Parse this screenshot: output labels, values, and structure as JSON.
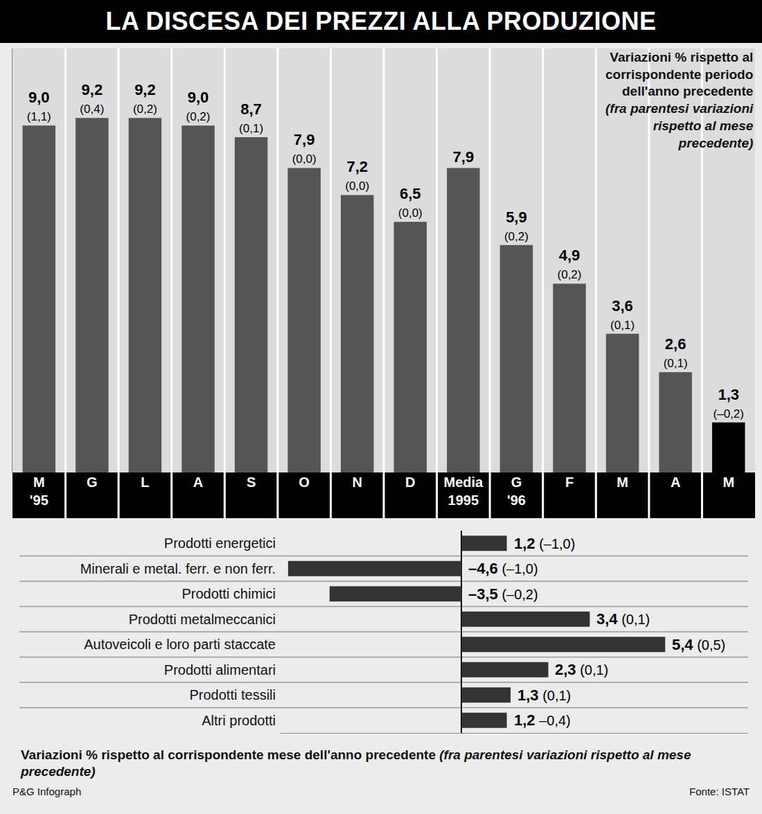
{
  "chart_data": [
    {
      "type": "bar",
      "title": "LA DISCESA DEI PREZZI ALLA PRODUZIONE",
      "annotations": [
        "Variazioni % rispetto al corrispondente periodo dell'anno precedente",
        "(fra parentesi variazioni rispetto al mese precedente)"
      ],
      "categories": [
        "M '95",
        "G",
        "L",
        "A",
        "S",
        "O",
        "N",
        "D",
        "Media 1995",
        "G '96",
        "F",
        "M",
        "A",
        "M"
      ],
      "values": [
        9.0,
        9.2,
        9.2,
        9.0,
        8.7,
        7.9,
        7.2,
        6.5,
        7.9,
        5.9,
        4.9,
        3.6,
        2.6,
        1.3
      ],
      "value_labels": [
        "9,0",
        "9,2",
        "9,2",
        "9,0",
        "8,7",
        "7,9",
        "7,2",
        "6,5",
        "7,9",
        "5,9",
        "4,9",
        "3,6",
        "2,6",
        "1,3"
      ],
      "secondary_labels": [
        "(1,1)",
        "(0,4)",
        "(0,2)",
        "(0,2)",
        "(0,1)",
        "(0,0)",
        "(0,0)",
        "(0,0)",
        null,
        "(0,2)",
        "(0,2)",
        "(0,1)",
        "(0,1)",
        "(–0,2)"
      ],
      "colors": [
        "#555555",
        "#555555",
        "#555555",
        "#555555",
        "#555555",
        "#555555",
        "#555555",
        "#555555",
        "#555555",
        "#555555",
        "#555555",
        "#555555",
        "#555555",
        "#000000"
      ],
      "ylim": [
        0,
        11
      ],
      "tick_labels": "x",
      "data_labels": true
    },
    {
      "type": "bar",
      "orientation": "horizontal",
      "categories": [
        "Prodotti energetici",
        "Minerali e metal. ferr. e non ferr.",
        "Prodotti chimici",
        "Prodotti metalmeccanici",
        "Autoveicoli e loro parti staccate",
        "Prodotti alimentari",
        "Prodotti tessili",
        "Altri prodotti"
      ],
      "values": [
        1.2,
        -4.6,
        -3.5,
        3.4,
        5.4,
        2.3,
        1.3,
        1.2
      ],
      "value_labels": [
        "1,2",
        "–4,6",
        "–3,5",
        "3,4",
        "5,4",
        "2,3",
        "1,3",
        "1,2"
      ],
      "secondary_labels": [
        "(–1,0)",
        "(–1,0)",
        "(–0,2)",
        "(0,1)",
        "(0,5)",
        "(0,1)",
        "(0,1)",
        "–0,4)"
      ],
      "color": "#333333",
      "xlim": [
        -4.8,
        7.6
      ],
      "tick_labels": "y",
      "data_labels": true,
      "annotations": [
        "Variazioni % rispetto al corrispondente mese dell'anno precedente",
        "(fra parentesi variazioni rispetto al mese precedente)"
      ]
    }
  ],
  "footer": {
    "credit": "P&G Infograph",
    "source": "Fonte: ISTAT"
  }
}
